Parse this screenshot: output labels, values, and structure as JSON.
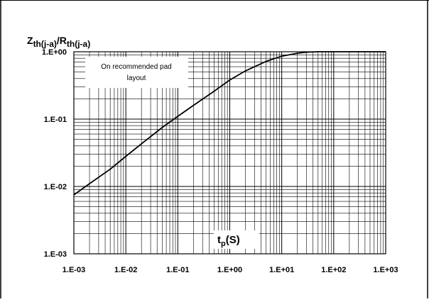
{
  "chart_data": {
    "type": "line",
    "title": "",
    "ylabel": {
      "main": "Z",
      "sub1": "th(j-a)",
      "slash": "/R",
      "sub2": "th(j-a)"
    },
    "xlabel": {
      "main": "t",
      "sub": "p",
      "rest": "(S)"
    },
    "annotation": [
      "On recommended pad",
      "layout"
    ],
    "x_scale": "log",
    "y_scale": "log",
    "xlim": [
      0.001,
      1000
    ],
    "ylim": [
      0.001,
      1
    ],
    "x_ticks": [
      0.001,
      0.01,
      0.1,
      1,
      10,
      100,
      1000
    ],
    "x_tick_labels": [
      "1.E-03",
      "1.E-02",
      "1.E-01",
      "1.E+00",
      "1.E+01",
      "1.E+02",
      "1.E+03"
    ],
    "y_ticks": [
      0.001,
      0.01,
      0.1,
      1
    ],
    "y_tick_labels": [
      "1.E-03",
      "1.E-02",
      "1.E-01",
      "1.E+00"
    ],
    "grid": true,
    "series": [
      {
        "x": [
          0.001,
          0.002,
          0.005,
          0.01,
          0.02,
          0.05,
          0.1,
          0.2,
          0.5,
          1,
          2,
          5,
          10,
          20,
          30,
          50,
          100,
          1000
        ],
        "y": [
          0.0075,
          0.011,
          0.018,
          0.028,
          0.043,
          0.075,
          0.11,
          0.16,
          0.26,
          0.38,
          0.52,
          0.72,
          0.86,
          0.95,
          0.985,
          1.0,
          1.0,
          1.0
        ]
      }
    ],
    "colors": {
      "line": "#000000",
      "grid": "#000000",
      "background": "#ffffff"
    }
  }
}
